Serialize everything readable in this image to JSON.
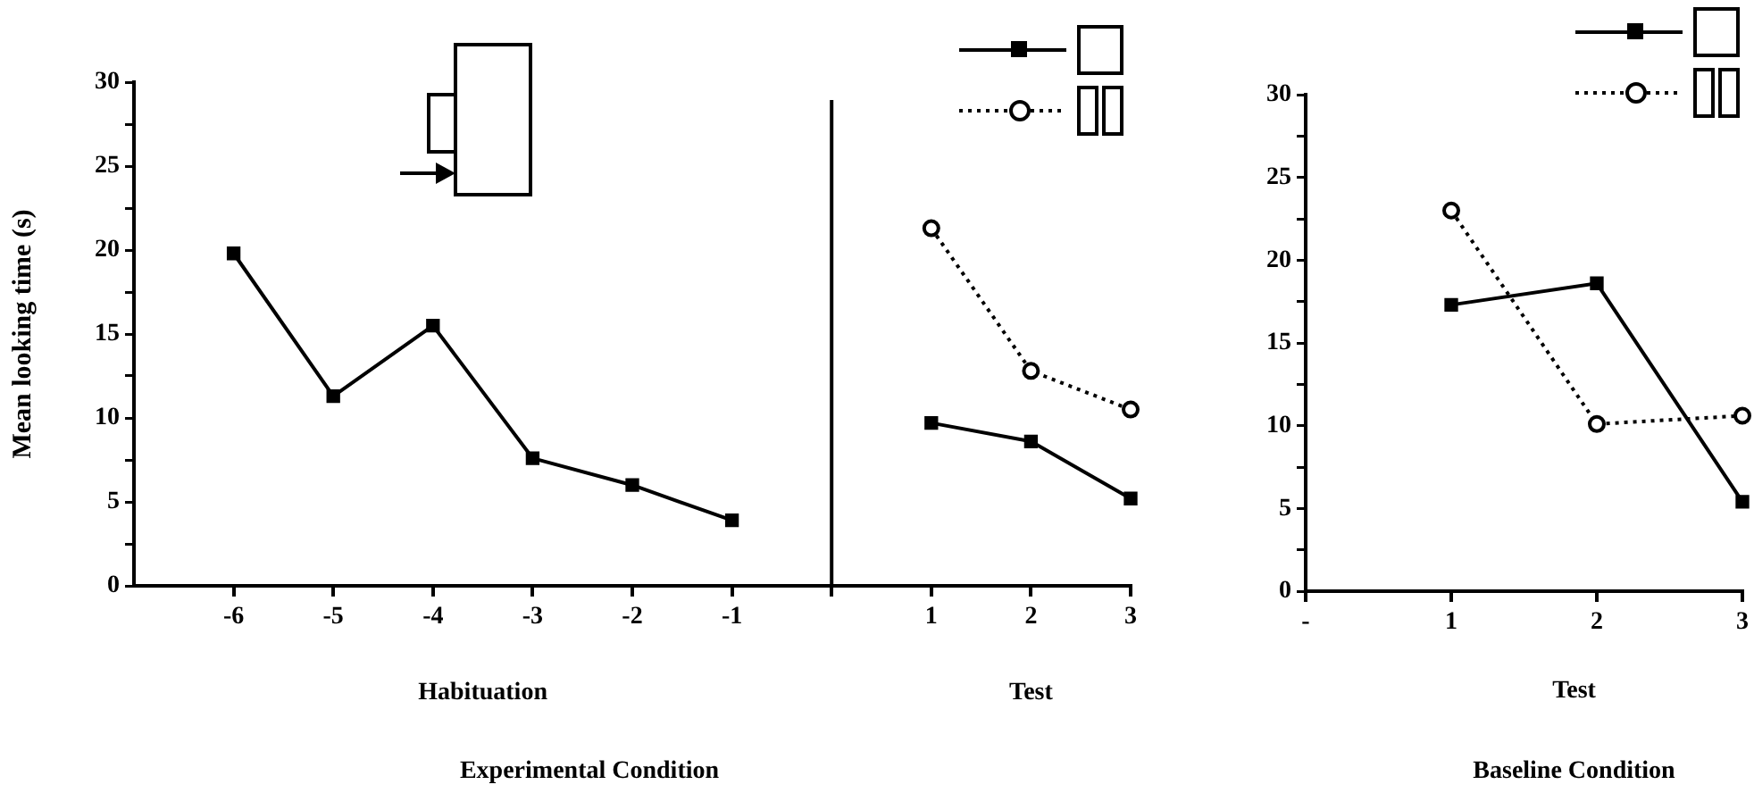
{
  "chart_data": [
    {
      "type": "line",
      "title": "Experimental Condition",
      "ylabel": "Mean looking time (s)",
      "annotations": [
        "Habituation",
        "Test"
      ],
      "xlim": [
        -7,
        3
      ],
      "xticks": [
        -6,
        -5,
        -4,
        -3,
        -2,
        -1,
        {
          "value": 0,
          "label": null
        },
        1,
        2,
        3
      ],
      "ylim": [
        0,
        30
      ],
      "yticks": [
        0,
        {
          "value": 2.5,
          "label": null
        },
        5,
        {
          "value": 7.5,
          "label": null
        },
        10,
        {
          "value": 12.5,
          "label": null
        },
        15,
        {
          "value": 17.5,
          "label": null
        },
        20,
        {
          "value": 22.5,
          "label": null
        },
        25,
        {
          "value": 27.5,
          "label": null
        },
        30
      ],
      "ref_lines": [
        {
          "axis": "x",
          "value": 0,
          "color": "#000000"
        }
      ],
      "series": [
        {
          "color": "#000000",
          "marker": "square",
          "line_style": "solid",
          "x": [
            -6,
            -5,
            -4,
            -3,
            -2,
            -1,
            0,
            1,
            2,
            3
          ],
          "values": [
            19.8,
            11.3,
            15.5,
            7.6,
            6.0,
            3.9,
            null,
            9.7,
            8.6,
            5.2
          ]
        },
        {
          "color": "#000000",
          "marker": "circle",
          "line_style": "dotted",
          "x": [
            1,
            2,
            3
          ],
          "values": [
            21.3,
            12.8,
            10.5
          ]
        }
      ]
    },
    {
      "type": "line",
      "title": "Baseline Condition",
      "xlabel": "Test",
      "xlim": [
        0,
        3
      ],
      "xticks": [
        {
          "value": 0,
          "label": "-"
        },
        1,
        2,
        3
      ],
      "ylim": [
        0,
        30
      ],
      "yticks": [
        0,
        {
          "value": 2.5,
          "label": null
        },
        5,
        {
          "value": 7.5,
          "label": null
        },
        10,
        {
          "value": 12.5,
          "label": null
        },
        15,
        {
          "value": 17.5,
          "label": null
        },
        20,
        {
          "value": 22.5,
          "label": null
        },
        25,
        {
          "value": 27.5,
          "label": null
        },
        30
      ],
      "series": [
        {
          "color": "#000000",
          "marker": "square",
          "line_style": "solid",
          "x": [
            1,
            2,
            3
          ],
          "values": [
            17.3,
            18.6,
            5.4
          ]
        },
        {
          "color": "#000000",
          "marker": "circle",
          "line_style": "dotted",
          "x": [
            1,
            2,
            3
          ],
          "values": [
            23.0,
            10.1,
            10.6
          ]
        }
      ]
    }
  ]
}
